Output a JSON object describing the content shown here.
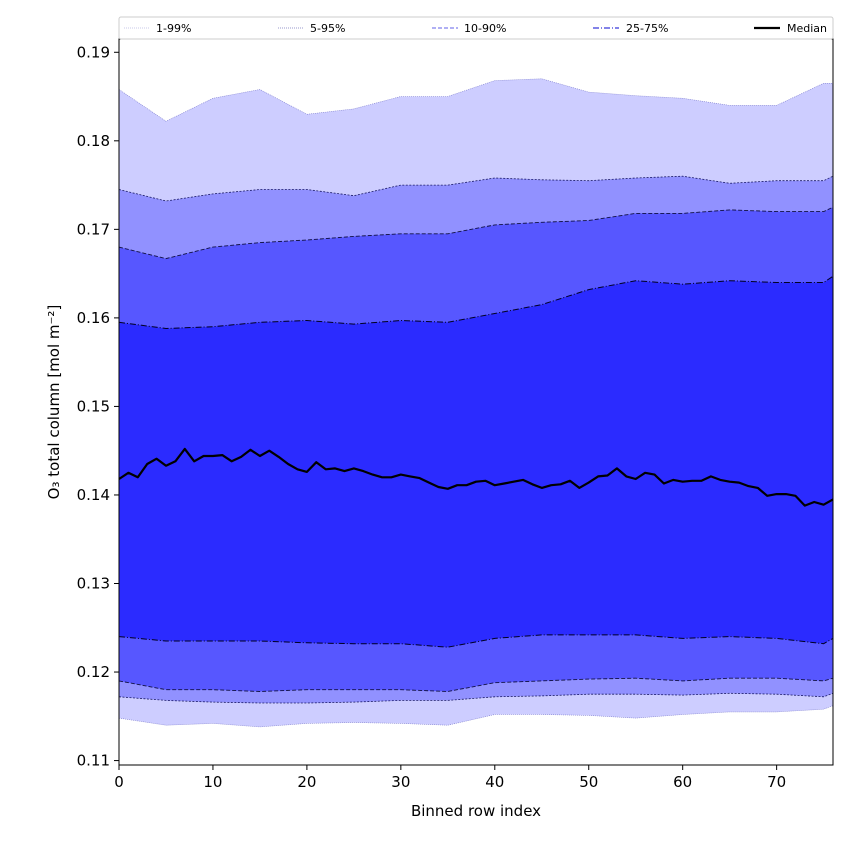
{
  "chart_data": {
    "type": "area",
    "title": "",
    "xlabel": "Binned row index",
    "ylabel": "O₃ total column [mol m⁻²]",
    "xlim": [
      0,
      76
    ],
    "ylim": [
      0.1095,
      0.1915
    ],
    "x_ticks": [
      "0",
      "10",
      "20",
      "30",
      "40",
      "50",
      "60",
      "70"
    ],
    "y_ticks": [
      "0.11",
      "0.12",
      "0.13",
      "0.14",
      "0.15",
      "0.16",
      "0.17",
      "0.18",
      "0.19"
    ],
    "grid": false,
    "legend_position": "top",
    "x": [
      0,
      5,
      10,
      15,
      20,
      25,
      30,
      35,
      40,
      45,
      50,
      55,
      60,
      65,
      70,
      75,
      76
    ],
    "bands": [
      {
        "name": "1-99%",
        "color": "#cdcdff",
        "lower": [
          0.1148,
          0.114,
          0.1142,
          0.1138,
          0.1142,
          0.1143,
          0.1142,
          0.114,
          0.1152,
          0.1152,
          0.1151,
          0.1148,
          0.1152,
          0.1155,
          0.1155,
          0.1158,
          0.1162
        ],
        "upper": [
          0.1858,
          0.1822,
          0.1848,
          0.1858,
          0.183,
          0.1836,
          0.185,
          0.185,
          0.1868,
          0.187,
          0.1855,
          0.1851,
          0.1848,
          0.184,
          0.184,
          0.1865,
          0.1865
        ]
      },
      {
        "name": "5-95%",
        "color": "#9191ff",
        "lower": [
          0.1172,
          0.1168,
          0.1166,
          0.1165,
          0.1165,
          0.1166,
          0.1168,
          0.1168,
          0.1172,
          0.1173,
          0.1175,
          0.1175,
          0.1174,
          0.1176,
          0.1175,
          0.1172,
          0.1176
        ],
        "upper": [
          0.1745,
          0.1732,
          0.174,
          0.1745,
          0.1745,
          0.1738,
          0.175,
          0.175,
          0.1758,
          0.1756,
          0.1755,
          0.1758,
          0.176,
          0.1752,
          0.1755,
          0.1755,
          0.176
        ]
      },
      {
        "name": "10-90%",
        "color": "#5757ff",
        "lower": [
          0.119,
          0.118,
          0.118,
          0.1178,
          0.118,
          0.118,
          0.118,
          0.1178,
          0.1188,
          0.119,
          0.1192,
          0.1193,
          0.119,
          0.1193,
          0.1193,
          0.119,
          0.1193
        ],
        "upper": [
          0.168,
          0.1667,
          0.168,
          0.1685,
          0.1688,
          0.1692,
          0.1695,
          0.1695,
          0.1705,
          0.1708,
          0.171,
          0.1718,
          0.1718,
          0.1722,
          0.172,
          0.172,
          0.1725
        ]
      },
      {
        "name": "25-75%",
        "color": "#2b2bff",
        "lower": [
          0.124,
          0.1235,
          0.1235,
          0.1235,
          0.1233,
          0.1232,
          0.1232,
          0.1228,
          0.1238,
          0.1242,
          0.1242,
          0.1242,
          0.1238,
          0.124,
          0.1238,
          0.1232,
          0.1238
        ],
        "upper": [
          0.1595,
          0.1588,
          0.159,
          0.1595,
          0.1597,
          0.1593,
          0.1597,
          0.1595,
          0.1605,
          0.1615,
          0.1632,
          0.1642,
          0.1638,
          0.1642,
          0.164,
          0.164,
          0.1647
        ]
      }
    ],
    "median": {
      "name": "Median",
      "color": "#000000",
      "x": [
        0,
        1,
        2,
        3,
        4,
        5,
        6,
        7,
        8,
        9,
        10,
        11,
        12,
        13,
        14,
        15,
        16,
        17,
        18,
        19,
        20,
        21,
        22,
        23,
        24,
        25,
        26,
        27,
        28,
        29,
        30,
        31,
        32,
        33,
        34,
        35,
        36,
        37,
        38,
        39,
        40,
        41,
        42,
        43,
        44,
        45,
        46,
        47,
        48,
        49,
        50,
        51,
        52,
        53,
        54,
        55,
        56,
        57,
        58,
        59,
        60,
        61,
        62,
        63,
        64,
        65,
        66,
        67,
        68,
        69,
        70,
        71,
        72,
        73,
        74,
        75,
        76
      ],
      "values": [
        0.1418,
        0.1425,
        0.142,
        0.1435,
        0.1441,
        0.1433,
        0.1438,
        0.1452,
        0.1438,
        0.1444,
        0.1444,
        0.1445,
        0.1438,
        0.1443,
        0.1451,
        0.1444,
        0.145,
        0.1443,
        0.1435,
        0.1429,
        0.1426,
        0.1437,
        0.1429,
        0.143,
        0.1427,
        0.143,
        0.1427,
        0.1423,
        0.142,
        0.142,
        0.1423,
        0.1421,
        0.1419,
        0.1414,
        0.1409,
        0.1407,
        0.1411,
        0.1411,
        0.1415,
        0.1416,
        0.1411,
        0.1413,
        0.1415,
        0.1417,
        0.1412,
        0.1408,
        0.1411,
        0.1412,
        0.1416,
        0.1408,
        0.1414,
        0.1421,
        0.1422,
        0.143,
        0.1421,
        0.1418,
        0.1425,
        0.1423,
        0.1413,
        0.1417,
        0.1415,
        0.1416,
        0.1416,
        0.1421,
        0.1417,
        0.1415,
        0.1414,
        0.141,
        0.1408,
        0.1399,
        0.1401,
        0.1401,
        0.1399,
        0.1388,
        0.1392,
        0.1389,
        0.1395
      ]
    }
  }
}
